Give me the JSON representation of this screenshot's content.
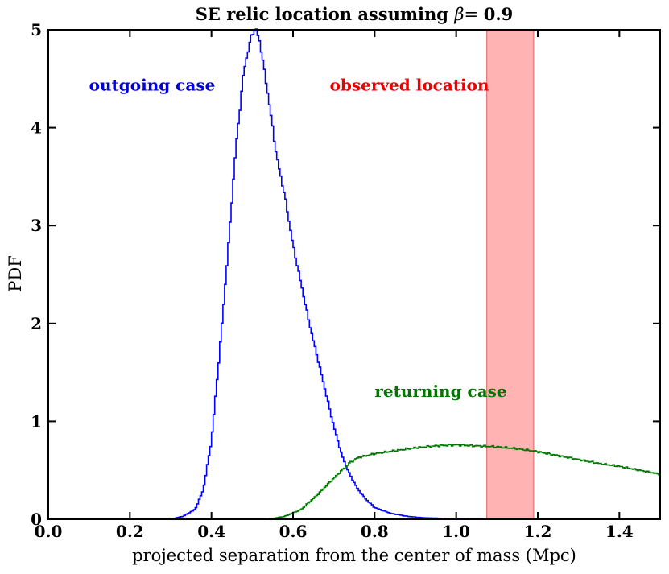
{
  "chart_data": {
    "type": "line",
    "title": {
      "prefix": "SE relic location assuming ",
      "symbol": "β",
      "eq": "= ",
      "value": "0.9"
    },
    "xlabel": "projected separation from the center of mass (Mpc)",
    "ylabel": "PDF",
    "xlim": [
      0.0,
      1.5
    ],
    "ylim": [
      0,
      5
    ],
    "x_ticks": [
      0.0,
      0.2,
      0.4,
      0.6,
      0.8,
      1.0,
      1.2,
      1.4
    ],
    "x_tick_labels": [
      "0.0",
      "0.2",
      "0.4",
      "0.6",
      "0.8",
      "1.0",
      "1.2",
      "1.4"
    ],
    "y_ticks": [
      0,
      1,
      2,
      3,
      4,
      5
    ],
    "y_tick_labels": [
      "0",
      "1",
      "2",
      "3",
      "4",
      "5"
    ],
    "series": [
      {
        "name": "outgoing case",
        "color": "#0000ff",
        "style": "step",
        "x": [
          0.3,
          0.33,
          0.36,
          0.38,
          0.4,
          0.42,
          0.44,
          0.46,
          0.48,
          0.5,
          0.51,
          0.52,
          0.54,
          0.56,
          0.58,
          0.6,
          0.62,
          0.64,
          0.66,
          0.68,
          0.7,
          0.72,
          0.74,
          0.76,
          0.78,
          0.8,
          0.84,
          0.88,
          0.92,
          0.96,
          1.0,
          1.05,
          1.1
        ],
        "y": [
          0.0,
          0.03,
          0.1,
          0.3,
          0.8,
          1.7,
          2.7,
          3.8,
          4.6,
          4.97,
          5.0,
          4.85,
          4.3,
          3.7,
          3.3,
          2.8,
          2.4,
          2.0,
          1.65,
          1.3,
          0.95,
          0.65,
          0.45,
          0.3,
          0.2,
          0.12,
          0.06,
          0.03,
          0.015,
          0.01,
          0.005,
          0.0,
          0.0
        ]
      },
      {
        "name": "returning case",
        "color": "#007700",
        "style": "step",
        "x": [
          0.54,
          0.58,
          0.62,
          0.66,
          0.7,
          0.72,
          0.74,
          0.76,
          0.8,
          0.85,
          0.9,
          0.95,
          1.0,
          1.05,
          1.1,
          1.15,
          1.2,
          1.25,
          1.3,
          1.35,
          1.4,
          1.45,
          1.5
        ],
        "y": [
          0.0,
          0.03,
          0.1,
          0.25,
          0.42,
          0.5,
          0.58,
          0.63,
          0.67,
          0.7,
          0.73,
          0.75,
          0.76,
          0.75,
          0.74,
          0.72,
          0.69,
          0.65,
          0.61,
          0.57,
          0.54,
          0.5,
          0.46
        ]
      }
    ],
    "shaded_region": {
      "label": "observed location",
      "x0": 1.075,
      "x1": 1.19,
      "color": "#ff8080"
    },
    "annotations": [
      {
        "text": "outgoing case",
        "x": 0.1,
        "y": 4.38,
        "color": "#0000dd"
      },
      {
        "text": "observed location",
        "x": 0.69,
        "y": 4.38,
        "color": "#ee0000"
      },
      {
        "text": "returning case",
        "x": 0.8,
        "y": 1.25,
        "color": "#007700"
      }
    ]
  }
}
